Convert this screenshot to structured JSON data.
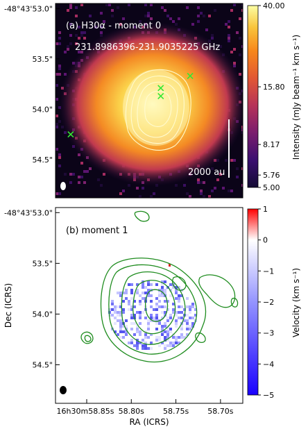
{
  "chart_data": [
    {
      "type": "heatmap",
      "panel_label": "(a) H30α - moment 0",
      "frequency_label": "231.8986396-231.9035225 GHz",
      "scalebar_label": "2000 au",
      "y_tick_labels": [
        "-48°43'53.0\"",
        "53.5\"",
        "54.0\"",
        "54.5\""
      ],
      "y_ticks": [
        53.0,
        53.5,
        54.0,
        54.5
      ],
      "colorbar": {
        "label": "Intensity (mJy beam⁻¹ km s⁻¹)",
        "tick_labels": [
          "5.00",
          "5.76",
          "8.17",
          "15.80",
          "40.00"
        ],
        "ticks": [
          5.0,
          5.76,
          8.17,
          15.8,
          40.0
        ],
        "colormap": "inferno",
        "range": [
          5.0,
          40.0
        ]
      },
      "contours_color": "#fffbd0",
      "markers": {
        "symbol": "x",
        "color": "#33e833",
        "points": [
          {
            "ra_s": 58.868,
            "dec_s": 54.25
          },
          {
            "ra_s": 58.767,
            "dec_s": 53.79
          },
          {
            "ra_s": 58.767,
            "dec_s": 53.87
          },
          {
            "ra_s": 58.734,
            "dec_s": 53.67
          }
        ]
      },
      "xlim": [
        58.885,
        58.675
      ],
      "ylim": [
        54.88,
        52.95
      ]
    },
    {
      "type": "heatmap",
      "panel_label": "(b) moment 1",
      "y_tick_labels": [
        "-48°43'53.0\"",
        "53.5\"",
        "54.0\"",
        "54.5\""
      ],
      "y_ticks": [
        53.0,
        53.5,
        54.0,
        54.5
      ],
      "x_tick_labels": [
        "16h30m58.85s",
        "58.80s",
        "58.75s",
        "58.70s"
      ],
      "x_ticks": [
        58.85,
        58.8,
        58.75,
        58.7
      ],
      "xlabel": "RA (ICRS)",
      "ylabel": "Dec (ICRS)",
      "colorbar": {
        "label": "Velocity (km s⁻¹)",
        "tick_labels": [
          "1",
          "0",
          "−1",
          "−2",
          "−3",
          "−4",
          "−5"
        ],
        "ticks": [
          1,
          0,
          -1,
          -2,
          -3,
          -4,
          -5
        ],
        "colormap": "bwr",
        "range": [
          -5,
          1
        ]
      },
      "contours_color": "#1e8c1e",
      "xlim": [
        58.885,
        58.675
      ],
      "ylim": [
        54.88,
        52.95
      ]
    }
  ]
}
